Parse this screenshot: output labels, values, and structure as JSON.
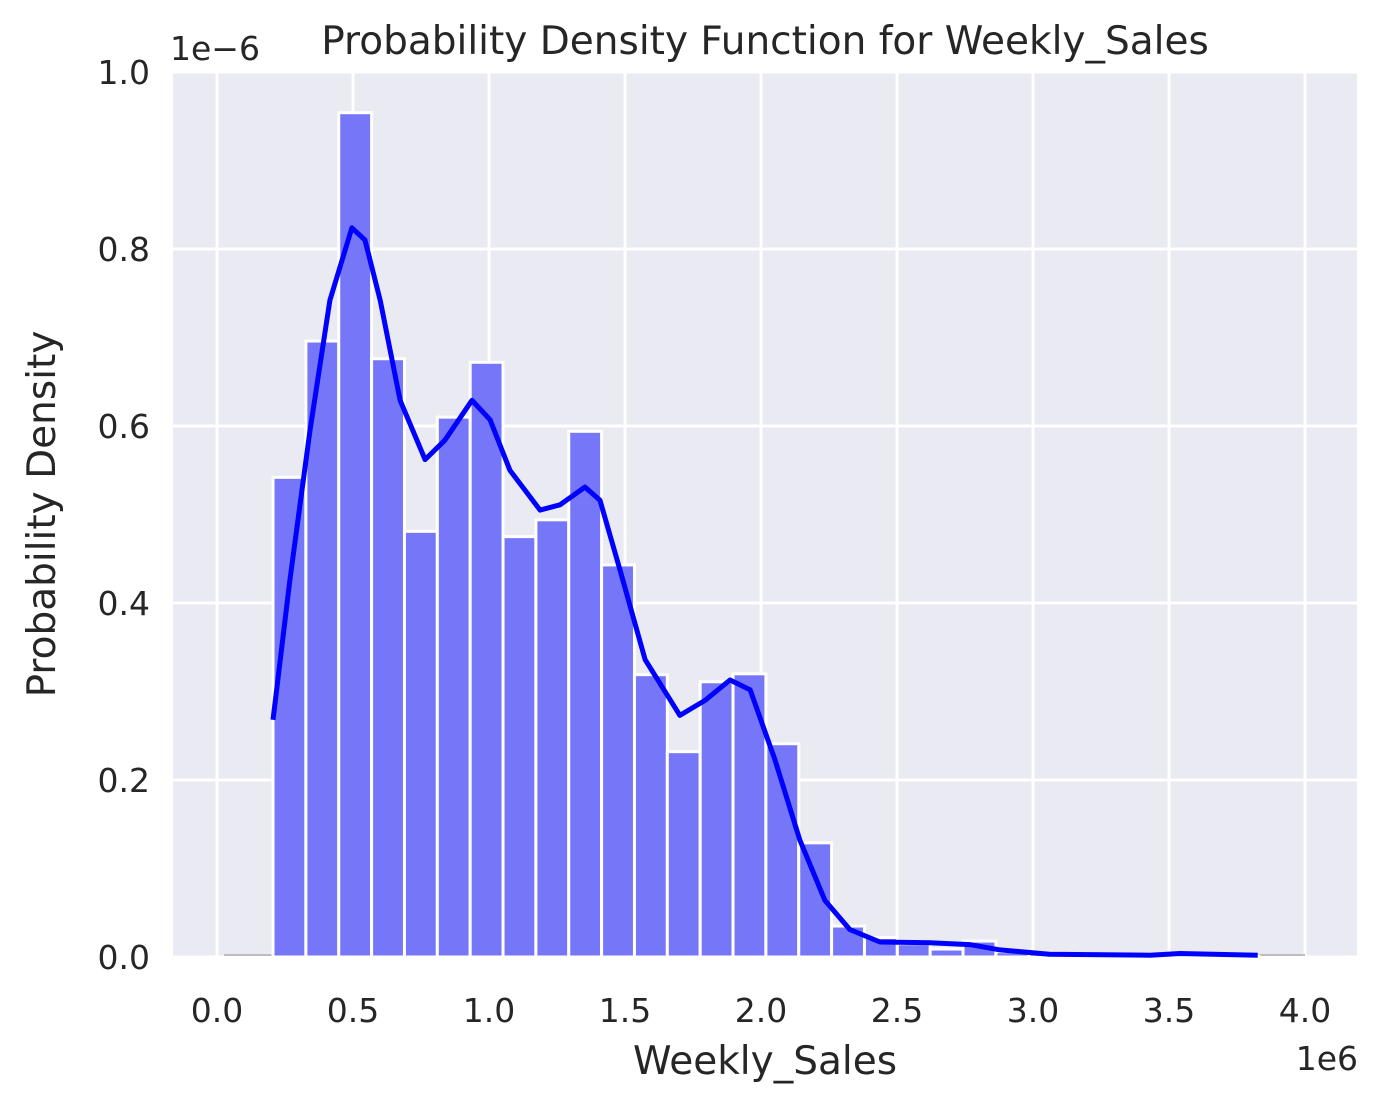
{
  "chart_data": {
    "type": "bar",
    "title": "Probability Density Function for Weekly_Sales",
    "xlabel": "Weekly_Sales",
    "ylabel": "Probability Density",
    "x_offset_label": "1e6",
    "y_offset_label": "1e−6",
    "xlim": [
      -0.16,
      4.16
    ],
    "ylim": [
      0,
      1.0
    ],
    "x_ticks": [
      0.0,
      0.5,
      1.0,
      1.5,
      2.0,
      2.5,
      3.0,
      3.5,
      4.0
    ],
    "x_tick_labels": [
      "0.0",
      "0.5",
      "1.0",
      "1.5",
      "2.0",
      "2.5",
      "3.0",
      "3.5",
      "4.0"
    ],
    "y_ticks": [
      0.0,
      0.2,
      0.4,
      0.6,
      0.8,
      1.0
    ],
    "y_tick_labels": [
      "0.0",
      "0.2",
      "0.4",
      "0.6",
      "0.8",
      "1.0"
    ],
    "grid": true,
    "histogram": {
      "bin_start": 0.206,
      "bin_width": 0.1208,
      "values": [
        0.542,
        0.696,
        0.954,
        0.676,
        0.481,
        0.61,
        0.672,
        0.475,
        0.494,
        0.594,
        0.443,
        0.319,
        0.232,
        0.311,
        0.32,
        0.241,
        0.129,
        0.035,
        0.022,
        0.015,
        0.009,
        0.018,
        0.006,
        0,
        0,
        0,
        0,
        0,
        0,
        0.001
      ],
      "color": "#7676f8"
    },
    "kde": {
      "color": "#0000ff",
      "x": [
        0.206,
        0.268,
        0.342,
        0.415,
        0.496,
        0.544,
        0.6,
        0.673,
        0.765,
        0.838,
        0.9375,
        1.004,
        1.077,
        1.188,
        1.261,
        1.353,
        1.408,
        1.482,
        1.574,
        1.702,
        1.794,
        1.886,
        1.96,
        2.051,
        2.143,
        2.235,
        2.327,
        2.437,
        2.621,
        2.768,
        2.879,
        3.06,
        3.43,
        3.54,
        3.826
      ],
      "y": [
        0.268,
        0.426,
        0.595,
        0.742,
        0.824,
        0.81,
        0.742,
        0.629,
        0.562,
        0.584,
        0.629,
        0.607,
        0.55,
        0.505,
        0.511,
        0.531,
        0.516,
        0.437,
        0.336,
        0.273,
        0.29,
        0.313,
        0.302,
        0.223,
        0.132,
        0.064,
        0.031,
        0.017,
        0.016,
        0.014,
        0.008,
        0.003,
        0.002,
        0.004,
        0.002
      ]
    },
    "background": "#eaeaf2"
  }
}
